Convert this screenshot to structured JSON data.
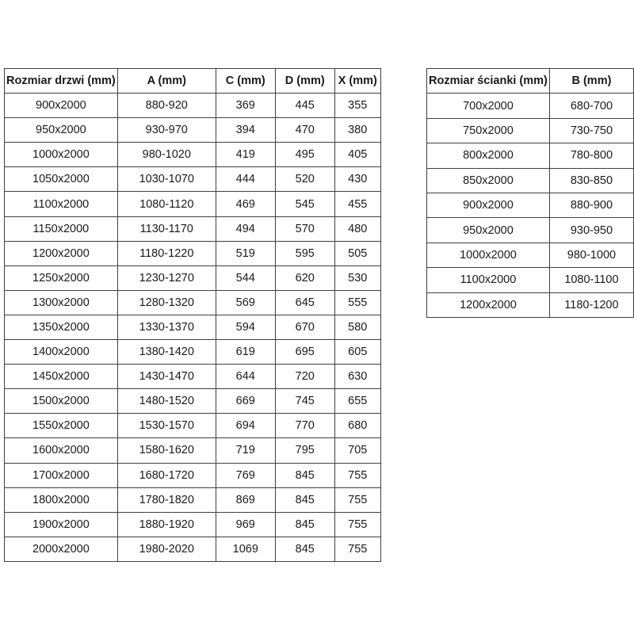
{
  "door_table": {
    "title": "door sizes table",
    "headers": [
      "Rozmiar drzwi (mm)",
      "A (mm)",
      "C (mm)",
      "D (mm)",
      "X (mm)"
    ],
    "rows": [
      [
        "900x2000",
        "880-920",
        "369",
        "445",
        "355"
      ],
      [
        "950x2000",
        "930-970",
        "394",
        "470",
        "380"
      ],
      [
        "1000x2000",
        "980-1020",
        "419",
        "495",
        "405"
      ],
      [
        "1050x2000",
        "1030-1070",
        "444",
        "520",
        "430"
      ],
      [
        "1100x2000",
        "1080-1120",
        "469",
        "545",
        "455"
      ],
      [
        "1150x2000",
        "1130-1170",
        "494",
        "570",
        "480"
      ],
      [
        "1200x2000",
        "1180-1220",
        "519",
        "595",
        "505"
      ],
      [
        "1250x2000",
        "1230-1270",
        "544",
        "620",
        "530"
      ],
      [
        "1300x2000",
        "1280-1320",
        "569",
        "645",
        "555"
      ],
      [
        "1350x2000",
        "1330-1370",
        "594",
        "670",
        "580"
      ],
      [
        "1400x2000",
        "1380-1420",
        "619",
        "695",
        "605"
      ],
      [
        "1450x2000",
        "1430-1470",
        "644",
        "720",
        "630"
      ],
      [
        "1500x2000",
        "1480-1520",
        "669",
        "745",
        "655"
      ],
      [
        "1550x2000",
        "1530-1570",
        "694",
        "770",
        "680"
      ],
      [
        "1600x2000",
        "1580-1620",
        "719",
        "795",
        "705"
      ],
      [
        "1700x2000",
        "1680-1720",
        "769",
        "845",
        "755"
      ],
      [
        "1800x2000",
        "1780-1820",
        "869",
        "845",
        "755"
      ],
      [
        "1900x2000",
        "1880-1920",
        "969",
        "845",
        "755"
      ],
      [
        "2000x2000",
        "1980-2020",
        "1069",
        "845",
        "755"
      ]
    ]
  },
  "wall_table": {
    "title": "wall panel sizes table",
    "headers": [
      "Rozmiar ścianki (mm)",
      "B (mm)"
    ],
    "rows": [
      [
        "700x2000",
        "680-700"
      ],
      [
        "750x2000",
        "730-750"
      ],
      [
        "800x2000",
        "780-800"
      ],
      [
        "850x2000",
        "830-850"
      ],
      [
        "900x2000",
        "880-900"
      ],
      [
        "950x2000",
        "930-950"
      ],
      [
        "1000x2000",
        "980-1000"
      ],
      [
        "1100x2000",
        "1080-1100"
      ],
      [
        "1200x2000",
        "1180-1200"
      ]
    ]
  },
  "colors": {
    "background": "#ffffff",
    "border": "#3f3f3f",
    "text": "#1a1a1a"
  }
}
